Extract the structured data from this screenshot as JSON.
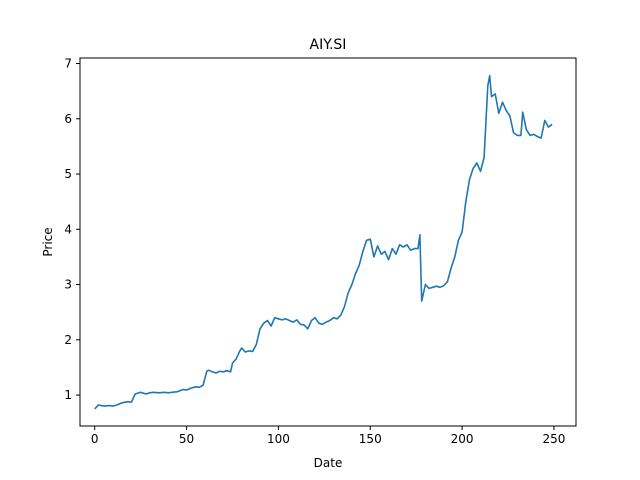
{
  "chart_data": {
    "type": "line",
    "title": "AIY.SI",
    "xlabel": "Date",
    "ylabel": "Price",
    "xlim": [
      -8,
      262
    ],
    "ylim": [
      0.44,
      7.1
    ],
    "xticks": [
      0,
      50,
      100,
      150,
      200,
      250
    ],
    "yticks": [
      1,
      2,
      3,
      4,
      5,
      6,
      7
    ],
    "grid": false,
    "line_color": "#1f77b4",
    "series": [
      {
        "x": [
          0,
          2,
          5,
          8,
          10,
          12,
          15,
          18,
          20,
          22,
          25,
          28,
          30,
          32,
          35,
          38,
          40,
          42,
          45,
          48,
          50,
          52,
          55,
          57,
          59,
          61,
          62,
          64,
          66,
          68,
          70,
          72,
          74,
          75,
          77,
          79,
          80,
          82,
          84,
          86,
          88,
          90,
          92,
          94,
          96,
          98,
          100,
          102,
          104,
          106,
          108,
          110,
          112,
          114,
          116,
          118,
          120,
          122,
          124,
          126,
          128,
          130,
          132,
          134,
          136,
          138,
          140,
          142,
          144,
          146,
          148,
          150,
          152,
          154,
          156,
          158,
          160,
          162,
          164,
          166,
          168,
          170,
          172,
          174,
          176,
          177,
          178,
          180,
          182,
          184,
          186,
          188,
          190,
          192,
          194,
          196,
          198,
          200,
          202,
          204,
          206,
          208,
          210,
          212,
          214,
          215,
          216,
          218,
          220,
          222,
          224,
          226,
          228,
          230,
          232,
          233,
          235,
          237,
          239,
          241,
          243,
          245,
          247,
          249
        ],
        "y": [
          0.75,
          0.82,
          0.8,
          0.81,
          0.8,
          0.82,
          0.86,
          0.88,
          0.87,
          1.02,
          1.05,
          1.02,
          1.04,
          1.05,
          1.04,
          1.05,
          1.04,
          1.05,
          1.06,
          1.1,
          1.09,
          1.12,
          1.15,
          1.14,
          1.18,
          1.43,
          1.45,
          1.42,
          1.4,
          1.43,
          1.42,
          1.44,
          1.42,
          1.58,
          1.65,
          1.8,
          1.85,
          1.78,
          1.8,
          1.79,
          1.92,
          2.2,
          2.3,
          2.35,
          2.25,
          2.4,
          2.38,
          2.36,
          2.38,
          2.35,
          2.32,
          2.36,
          2.28,
          2.27,
          2.2,
          2.35,
          2.4,
          2.3,
          2.28,
          2.32,
          2.35,
          2.4,
          2.38,
          2.45,
          2.6,
          2.85,
          3.0,
          3.2,
          3.35,
          3.6,
          3.8,
          3.82,
          3.5,
          3.7,
          3.55,
          3.6,
          3.45,
          3.65,
          3.55,
          3.72,
          3.68,
          3.72,
          3.62,
          3.65,
          3.65,
          3.9,
          2.7,
          3.0,
          2.93,
          2.95,
          2.97,
          2.95,
          2.98,
          3.05,
          3.3,
          3.5,
          3.8,
          3.95,
          4.5,
          4.9,
          5.1,
          5.2,
          5.05,
          5.3,
          6.6,
          6.78,
          6.4,
          6.45,
          6.1,
          6.3,
          6.15,
          6.05,
          5.75,
          5.7,
          5.7,
          6.12,
          5.8,
          5.7,
          5.72,
          5.68,
          5.65,
          5.97,
          5.85,
          5.9
        ]
      }
    ]
  }
}
